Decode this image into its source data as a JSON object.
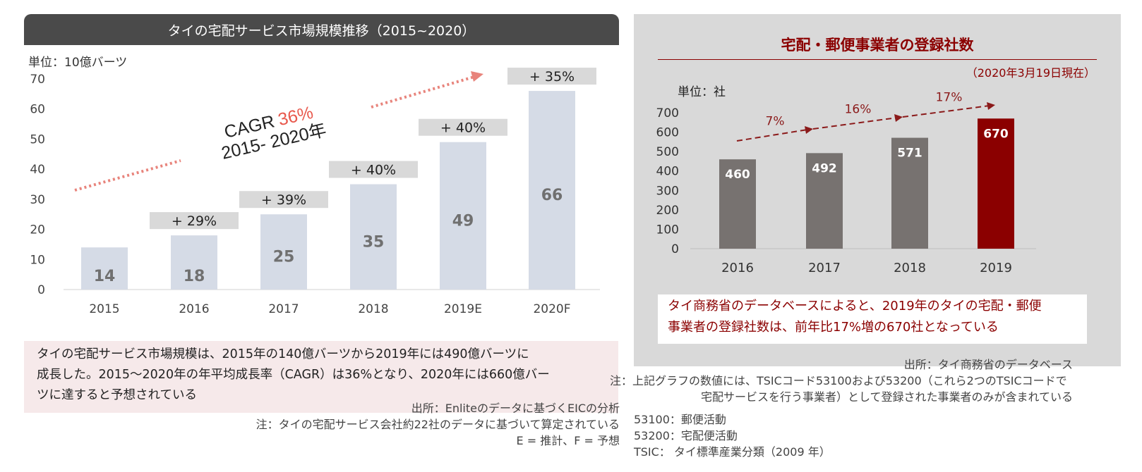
{
  "left": {
    "title": "タイの宅配サービス市場規模推移（2015~2020）",
    "unit": "単位：10億バーツ",
    "cagr_label": "CAGR",
    "cagr_value": "36%",
    "cagr_period": "2015- 2020年",
    "summary_lines": [
      "タイの宅配サービス市場規模は、2015年の140億バーツから2019年には490億バーツに",
      "成長した。2015〜2020年の年平均成長率（CAGR）は36%となり、2020年には660億バー",
      "ツに達すると予想されている"
    ],
    "source": "出所：Enliteのデータに基づくEICの分析",
    "note": "注：タイの宅配サービス会社約22社のデータに基づいて算定されている",
    "legend_note": "E = 推計、F = 予想"
  },
  "right": {
    "title": "宅配・郵便事業者の登録社数",
    "as_of": "（2020年3月19日現在）",
    "unit": "単位：社",
    "summary_lines": [
      "タイ商務省のデータベースによると、2019年のタイの宅配・郵便",
      "事業者の登録社数は、前年比17%増の670社となっている"
    ],
    "source": "出所：タイ商務省のデータベース",
    "note_lines": [
      "注：上記グラフの数値には、TSICコード53100および53200（これら2つのTSICコードで",
      "宅配サービスを行う事業者）として登録された事業者のみが含まれている"
    ],
    "codes": [
      "53100：郵便活動",
      "53200：宅配便活動",
      "TSIC： タイ標準産業分類（2009 年）"
    ]
  },
  "colors": {
    "left_bar": "#d5dbe6",
    "left_bar_label": "#707070",
    "growth_box": "#d9d9d9",
    "cagr_arrow": "#e8847c",
    "right_bar": "#777270",
    "right_bar_highlight": "#8b0000",
    "right_arrow": "#8b1a1a"
  },
  "chart_data": [
    {
      "type": "bar",
      "categories": [
        "2015",
        "2016",
        "2017",
        "2018",
        "2019E",
        "2020F"
      ],
      "values": [
        14,
        18,
        25,
        35,
        49,
        66
      ],
      "data_labels": [
        "14",
        "18",
        "25",
        "35",
        "49",
        "66"
      ],
      "growth_labels": [
        "",
        "+ 29%",
        "+ 39%",
        "+ 40%",
        "+ 40%",
        "+ 35%"
      ],
      "ylim": [
        0,
        70
      ],
      "yticks": [
        0,
        10,
        20,
        30,
        40,
        50,
        60,
        70
      ],
      "ytick_labels": [
        "0",
        "10",
        "20",
        "30",
        "40",
        "50",
        "60",
        "70"
      ],
      "grid": false,
      "legend": "none"
    },
    {
      "type": "bar",
      "categories": [
        "2016",
        "2017",
        "2018",
        "2019"
      ],
      "values": [
        460,
        492,
        571,
        670
      ],
      "data_labels": [
        "460",
        "492",
        "571",
        "670"
      ],
      "growth_labels": [
        "7%",
        "16%",
        "17%"
      ],
      "highlight_index": 3,
      "ylim": [
        0,
        700
      ],
      "yticks": [
        0,
        100,
        200,
        300,
        400,
        500,
        600,
        700
      ],
      "ytick_labels": [
        "0",
        "100",
        "200",
        "300",
        "400",
        "500",
        "600",
        "700"
      ],
      "grid": false,
      "legend": "none"
    }
  ]
}
